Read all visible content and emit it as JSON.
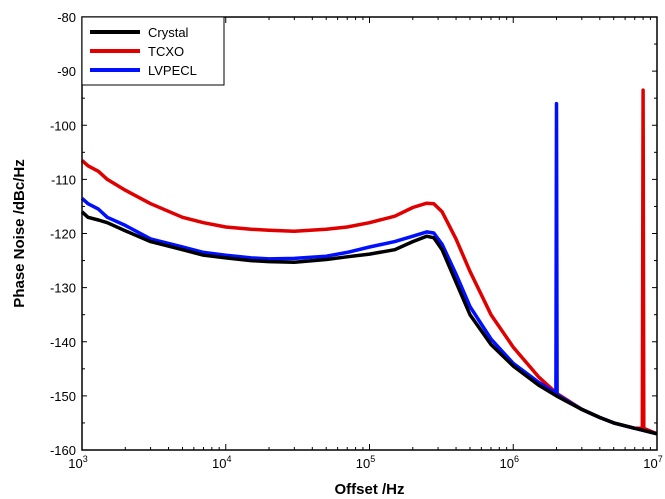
{
  "chart_data": {
    "type": "line",
    "title": "",
    "xlabel": "Offset /Hz",
    "ylabel": "Phase Noise /dBc/Hz",
    "x_scale": "log",
    "xlim": [
      1000,
      10000000
    ],
    "ylim": [
      -160,
      -80
    ],
    "y_ticks": [
      -80,
      -90,
      -100,
      -110,
      -120,
      -130,
      -140,
      -150,
      -160
    ],
    "x_ticks": [
      {
        "base": "10",
        "exp": "3"
      },
      {
        "base": "10",
        "exp": "4"
      },
      {
        "base": "10",
        "exp": "5"
      },
      {
        "base": "10",
        "exp": "6"
      },
      {
        "base": "10",
        "exp": "7"
      }
    ],
    "grid": false,
    "legend": "top-left",
    "series": [
      {
        "name": "Crystal",
        "color": "#000000",
        "x": [
          1000,
          1100,
          1300,
          1500,
          2000,
          3000,
          5000,
          7000,
          10000,
          15000,
          20000,
          30000,
          50000,
          70000,
          100000,
          150000,
          200000,
          250000,
          280000,
          320000,
          400000,
          500000,
          700000,
          1000000,
          1500000,
          2000000,
          3000000,
          4000000,
          5000000,
          7000000,
          10000000
        ],
        "values": [
          -116,
          -117,
          -117.5,
          -118,
          -119.5,
          -121.5,
          -123,
          -124,
          -124.5,
          -125,
          -125.2,
          -125.3,
          -124.8,
          -124.3,
          -123.8,
          -123,
          -121.5,
          -120.5,
          -120.8,
          -123,
          -129,
          -135,
          -140.5,
          -144.5,
          -148,
          -150,
          -152.5,
          -154,
          -155,
          -156,
          -157
        ]
      },
      {
        "name": "TCXO",
        "color": "#e00000",
        "x": [
          1000,
          1100,
          1300,
          1500,
          2000,
          3000,
          5000,
          7000,
          10000,
          15000,
          20000,
          30000,
          50000,
          70000,
          100000,
          150000,
          200000,
          250000,
          280000,
          320000,
          400000,
          500000,
          700000,
          1000000,
          1500000,
          2000000,
          3000000,
          4000000,
          5000000,
          7000000,
          7900000,
          8000000,
          8100000,
          9000000,
          10000000
        ],
        "values": [
          -106.5,
          -107.5,
          -108.5,
          -110,
          -112,
          -114.5,
          -117,
          -118,
          -118.8,
          -119.2,
          -119.4,
          -119.6,
          -119.2,
          -118.8,
          -118,
          -116.8,
          -115.2,
          -114.4,
          -114.5,
          -116,
          -121,
          -127,
          -135,
          -141,
          -146.5,
          -149.5,
          -152.5,
          -154,
          -155,
          -156,
          -156,
          -93.5,
          -156,
          -156.5,
          -157
        ]
      },
      {
        "name": "LVPECL",
        "color": "#0010ff",
        "x": [
          1000,
          1100,
          1300,
          1500,
          2000,
          3000,
          5000,
          7000,
          10000,
          15000,
          20000,
          30000,
          50000,
          70000,
          100000,
          150000,
          200000,
          250000,
          280000,
          320000,
          400000,
          500000,
          700000,
          1000000,
          1500000,
          1980000,
          2000000,
          2020000,
          3000000,
          4000000,
          5000000,
          7000000,
          10000000
        ],
        "values": [
          -113.5,
          -114.5,
          -115.5,
          -117,
          -118.5,
          -121,
          -122.5,
          -123.5,
          -124,
          -124.5,
          -124.7,
          -124.6,
          -124.2,
          -123.5,
          -122.5,
          -121.5,
          -120.5,
          -119.7,
          -119.9,
          -122,
          -127.5,
          -133.5,
          -139.5,
          -144,
          -147.5,
          -149.5,
          -96,
          -149.8,
          -152.5,
          -154,
          -155,
          -156,
          -157
        ]
      }
    ]
  }
}
